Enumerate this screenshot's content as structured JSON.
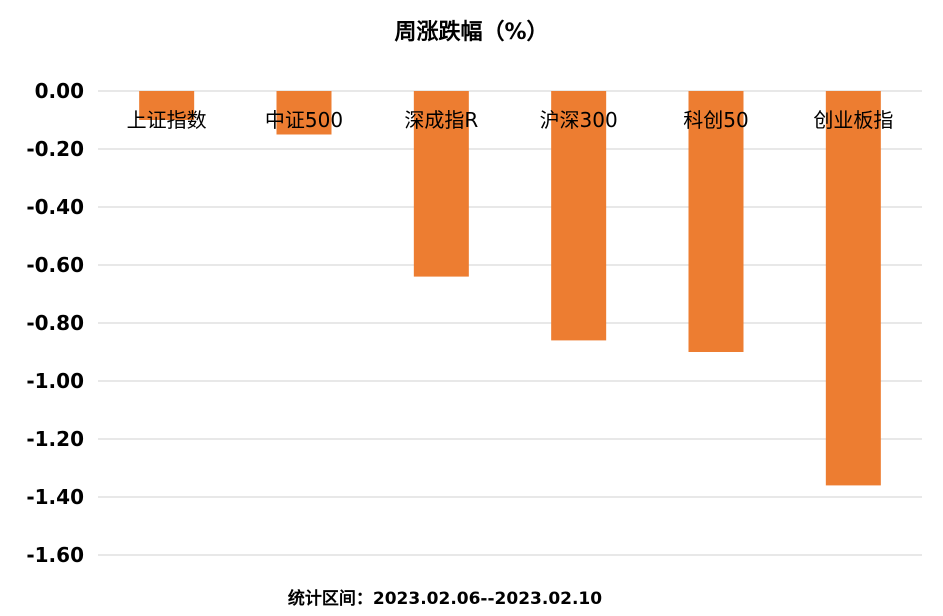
{
  "chart_data": {
    "type": "bar",
    "title": "周涨跌幅（%）",
    "footer": "统计区间：2023.02.06--2023.02.10",
    "categories": [
      "上证指数",
      "中证500",
      "深成指R",
      "沪深300",
      "科创50",
      "创业板指"
    ],
    "values": [
      -0.1,
      -0.15,
      -0.64,
      -0.86,
      -0.9,
      -1.36
    ],
    "ylim": [
      -1.6,
      0.0
    ],
    "yticks": [
      "0.00",
      "-0.20",
      "-0.40",
      "-0.60",
      "-0.80",
      "-1.00",
      "-1.20",
      "-1.40",
      "-1.60"
    ],
    "ytick_values": [
      0.0,
      -0.2,
      -0.4,
      -0.6,
      -0.8,
      -1.0,
      -1.2,
      -1.4,
      -1.6
    ],
    "grid": true,
    "legend": "none",
    "colors": {
      "bar": "#ED7D31",
      "grid": "#D9D9D9",
      "text": "#000000"
    }
  }
}
